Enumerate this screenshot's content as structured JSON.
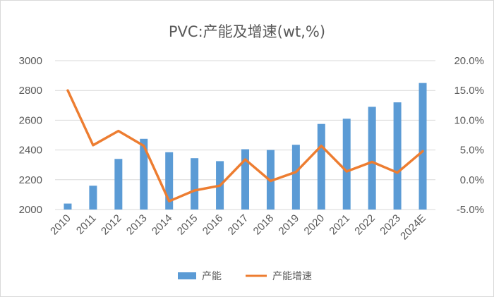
{
  "chart_data": {
    "type": "bar+line",
    "title": "PVC:产能及增速(wt,%)",
    "categories": [
      "2010",
      "2011",
      "2012",
      "2013",
      "2014",
      "2015",
      "2016",
      "2017",
      "2018",
      "2019",
      "2020",
      "2021",
      "2022",
      "2023",
      "2024E"
    ],
    "series": [
      {
        "name": "产能",
        "type": "bar",
        "axis": "left",
        "color": "#5b9bd5",
        "values": [
          2040,
          2160,
          2340,
          2475,
          2385,
          2345,
          2325,
          2405,
          2400,
          2435,
          2575,
          2610,
          2690,
          2720,
          2850
        ]
      },
      {
        "name": "产能增速",
        "type": "line",
        "axis": "right",
        "color": "#ed7d31",
        "values": [
          15.0,
          5.8,
          8.2,
          5.7,
          -3.6,
          -1.8,
          -1.0,
          3.4,
          -0.2,
          1.3,
          5.7,
          1.4,
          3.0,
          1.2,
          4.8
        ]
      }
    ],
    "y_left": {
      "min": 2000,
      "max": 3000,
      "ticks": [
        "2000",
        "2200",
        "2400",
        "2600",
        "2800",
        "3000"
      ]
    },
    "y_right": {
      "min": -5,
      "max": 20,
      "ticks": [
        "-5.0%",
        "0.0%",
        "5.0%",
        "10.0%",
        "15.0%",
        "20.0%"
      ]
    },
    "grid": true,
    "legend": "bottom"
  }
}
